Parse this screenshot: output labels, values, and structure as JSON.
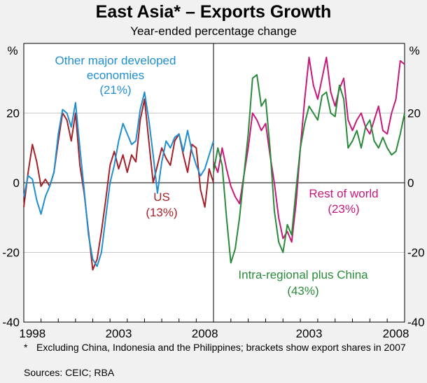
{
  "title": "East Asia* – Exports Growth",
  "subtitle": "Year-ended percentage change",
  "footnote_marker": "*",
  "footnote": "Excluding China, Indonesia and the Philippines; brackets show export shares in 2007",
  "source": "Sources: CEIC; RBA",
  "colors": {
    "other_developed": "#1f8fd0",
    "us": "#a5222a",
    "rest_of_world": "#c7197a",
    "intra_regional": "#2a8a3a",
    "background": "#f1f1f1"
  },
  "chart_data": [
    {
      "type": "line",
      "panel": "left",
      "ylabel_left": "%",
      "ylim": [
        -40,
        40
      ],
      "xlim": [
        1997.0,
        2008.0
      ],
      "grid": true,
      "x_ticks": [
        "1998",
        "2003",
        "2008"
      ],
      "y_ticks": [
        "20",
        "0",
        "-20",
        "-40"
      ],
      "annotations": [
        {
          "series": "Other major developed economies",
          "lines": [
            "Other major developed",
            "economies",
            "(21%)"
          ]
        },
        {
          "series": "US",
          "lines": [
            "US",
            "(13%)"
          ]
        }
      ],
      "series": [
        {
          "name": "Other major developed economies",
          "key": "other_developed",
          "x": [
            1997.0,
            1997.25,
            1997.5,
            1997.75,
            1998.0,
            1998.25,
            1998.5,
            1998.75,
            1999.0,
            1999.25,
            1999.5,
            1999.75,
            2000.0,
            2000.25,
            2000.5,
            2000.75,
            2001.0,
            2001.25,
            2001.5,
            2001.75,
            2002.0,
            2002.25,
            2002.5,
            2002.75,
            2003.0,
            2003.25,
            2003.5,
            2003.75,
            2004.0,
            2004.25,
            2004.5,
            2004.75,
            2005.0,
            2005.25,
            2005.5,
            2005.75,
            2006.0,
            2006.25,
            2006.5,
            2006.75,
            2007.0,
            2007.25,
            2007.5,
            2007.75,
            2008.0
          ],
          "values": [
            -4,
            2,
            1,
            -5,
            -9,
            -4,
            -1,
            3,
            14,
            21,
            20,
            16,
            23,
            10,
            -2,
            -15,
            -22,
            -24,
            -20,
            -10,
            0,
            5,
            12,
            17,
            14,
            11,
            12,
            21,
            26,
            18,
            8,
            -3,
            6,
            12,
            10,
            13,
            14,
            9,
            15,
            9,
            5,
            2,
            4,
            8,
            12
          ]
        },
        {
          "name": "US",
          "key": "us",
          "x": [
            1997.0,
            1997.25,
            1997.5,
            1997.75,
            1998.0,
            1998.25,
            1998.5,
            1998.75,
            1999.0,
            1999.25,
            1999.5,
            1999.75,
            2000.0,
            2000.25,
            2000.5,
            2000.75,
            2001.0,
            2001.25,
            2001.5,
            2001.75,
            2002.0,
            2002.25,
            2002.5,
            2002.75,
            2003.0,
            2003.25,
            2003.5,
            2003.75,
            2004.0,
            2004.25,
            2004.5,
            2004.75,
            2005.0,
            2005.25,
            2005.5,
            2005.75,
            2006.0,
            2006.25,
            2006.5,
            2006.75,
            2007.0,
            2007.25,
            2007.5,
            2007.75,
            2008.0
          ],
          "values": [
            -7,
            3,
            11,
            6,
            -1,
            1,
            -1,
            3,
            12,
            20,
            18,
            12,
            20,
            5,
            -3,
            -14,
            -25,
            -22,
            -14,
            -5,
            5,
            9,
            4,
            8,
            3,
            8,
            6,
            18,
            24,
            12,
            0,
            5,
            10,
            7,
            5,
            12,
            14,
            8,
            3,
            11,
            10,
            -2,
            -7,
            4,
            0
          ]
        }
      ]
    },
    {
      "type": "line",
      "panel": "right",
      "ylabel_right": "%",
      "ylim": [
        -40,
        40
      ],
      "xlim": [
        1997.0,
        2008.0
      ],
      "grid": true,
      "x_ticks": [
        "2003",
        "2008"
      ],
      "y_ticks": [
        "20",
        "0",
        "-20",
        "-40"
      ],
      "annotations": [
        {
          "series": "Rest of world",
          "lines": [
            "Rest of world",
            "(23%)"
          ]
        },
        {
          "series": "Intra-regional plus China",
          "lines": [
            "Intra-regional plus China",
            "(43%)"
          ]
        }
      ],
      "series": [
        {
          "name": "Rest of world",
          "key": "rest_of_world",
          "x": [
            1997.0,
            1997.25,
            1997.5,
            1997.75,
            1998.0,
            1998.25,
            1998.5,
            1998.75,
            1999.0,
            1999.25,
            1999.5,
            1999.75,
            2000.0,
            2000.25,
            2000.5,
            2000.75,
            2001.0,
            2001.25,
            2001.5,
            2001.75,
            2002.0,
            2002.25,
            2002.5,
            2002.75,
            2003.0,
            2003.25,
            2003.5,
            2003.75,
            2004.0,
            2004.25,
            2004.5,
            2004.75,
            2005.0,
            2005.25,
            2005.5,
            2005.75,
            2006.0,
            2006.25,
            2006.5,
            2006.75,
            2007.0,
            2007.25,
            2007.5,
            2007.75,
            2008.0
          ],
          "values": [
            6,
            3,
            10,
            4,
            -1,
            -4,
            -6,
            2,
            10,
            20,
            18,
            15,
            17,
            8,
            0,
            -10,
            -16,
            -14,
            -17,
            -6,
            10,
            24,
            36,
            28,
            24,
            30,
            36,
            26,
            22,
            27,
            30,
            18,
            15,
            18,
            20,
            16,
            14,
            18,
            22,
            15,
            14,
            20,
            24,
            35,
            34
          ]
        },
        {
          "name": "Intra-regional plus China",
          "key": "intra_regional",
          "x": [
            1997.0,
            1997.25,
            1997.5,
            1997.75,
            1998.0,
            1998.25,
            1998.5,
            1998.75,
            1999.0,
            1999.25,
            1999.5,
            1999.75,
            2000.0,
            2000.25,
            2000.5,
            2000.75,
            2001.0,
            2001.25,
            2001.5,
            2001.75,
            2002.0,
            2002.25,
            2002.5,
            2002.75,
            2003.0,
            2003.25,
            2003.5,
            2003.75,
            2004.0,
            2004.25,
            2004.5,
            2004.75,
            2005.0,
            2005.25,
            2005.5,
            2005.75,
            2006.0,
            2006.25,
            2006.5,
            2006.75,
            2007.0,
            2007.25,
            2007.5,
            2007.75,
            2008.0
          ],
          "values": [
            3,
            10,
            5,
            -10,
            -23,
            -19,
            -10,
            2,
            14,
            30,
            31,
            22,
            24,
            10,
            -8,
            -17,
            -20,
            -12,
            -15,
            -2,
            10,
            17,
            22,
            20,
            18,
            25,
            26,
            20,
            19,
            28,
            24,
            10,
            12,
            15,
            10,
            16,
            18,
            12,
            10,
            13,
            10,
            8,
            9,
            14,
            20
          ]
        }
      ]
    }
  ]
}
